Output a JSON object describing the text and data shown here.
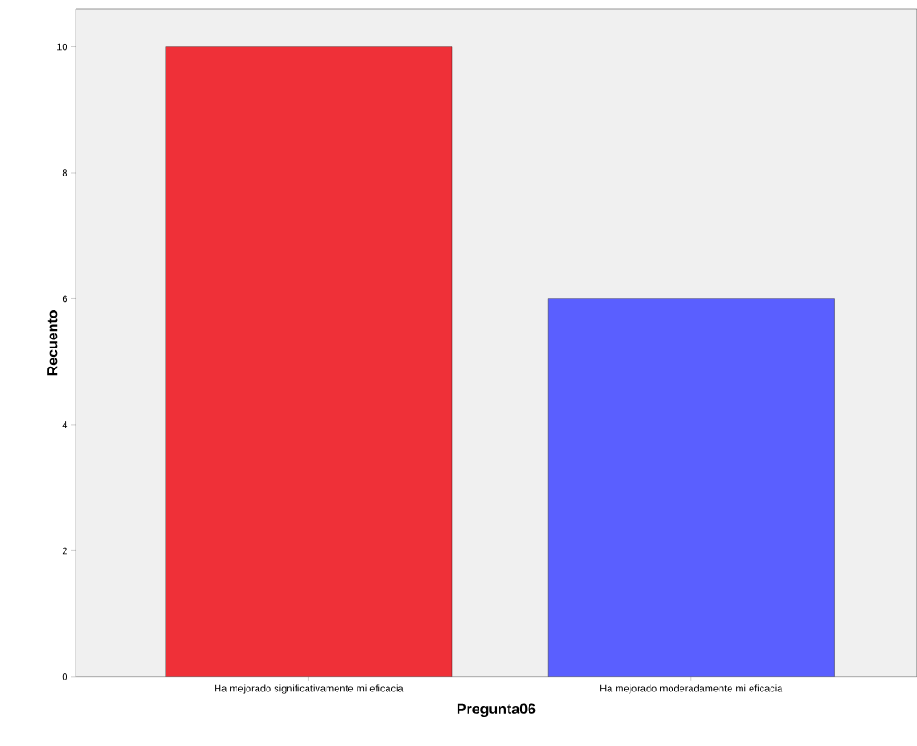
{
  "chart_data": {
    "type": "bar",
    "xlabel": "Pregunta06",
    "ylabel": "Recuento",
    "categories": [
      "Ha mejorado significativamente mi eficacia",
      "Ha mejorado moderadamente mi eficacia"
    ],
    "values": [
      10,
      6
    ],
    "colors": [
      "#ef3038",
      "#5a5fff"
    ],
    "ylim": [
      0,
      10.6
    ],
    "yticks": [
      0,
      2,
      4,
      6,
      8,
      10
    ]
  }
}
